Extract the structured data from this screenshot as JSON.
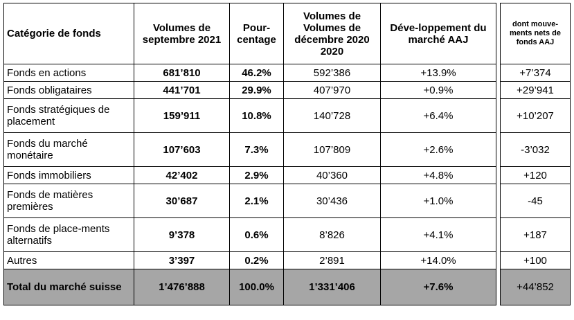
{
  "headers": {
    "category": "Catégorie de fonds",
    "vol_sep": "Volumes de septembre 2021",
    "pct": "Pour-centage",
    "vol_dec_line1": "Volumes de",
    "vol_dec_line2": "Volumes de",
    "vol_dec_line3": "décembre 2020",
    "vol_dec_line4": "2020",
    "dev": "Déve-loppement du marché AAJ",
    "net": "dont mouve-ments nets de fonds AAJ"
  },
  "rows": [
    {
      "category": "Fonds en actions",
      "vol_sep": "681’810",
      "pct": "46.2%",
      "vol_dec": "592’386",
      "dev": "+13.9%",
      "net": "+7’374"
    },
    {
      "category": "Fonds obligataires",
      "vol_sep": "441’701",
      "pct": "29.9%",
      "vol_dec": "407’970",
      "dev": "+0.9%",
      "net": "+29’941"
    },
    {
      "category": "Fonds stratégiques de placement",
      "vol_sep": "159’911",
      "pct": "10.8%",
      "vol_dec": "140’728",
      "dev": "+6.4%",
      "net": "+10’207"
    },
    {
      "category": "Fonds du marché monétaire",
      "vol_sep": "107’603",
      "pct": "7.3%",
      "vol_dec": "107’809",
      "dev": "+2.6%",
      "net": "-3’032"
    },
    {
      "category": "Fonds immobiliers",
      "vol_sep": "42’402",
      "pct": "2.9%",
      "vol_dec": "40’360",
      "dev": "+4.8%",
      "net": "+120"
    },
    {
      "category": "Fonds de matières premières",
      "vol_sep": "30’687",
      "pct": "2.1%",
      "vol_dec": "30’436",
      "dev": "+1.0%",
      "net": "-45"
    },
    {
      "category": "Fonds de place-ments alternatifs",
      "vol_sep": "9’378",
      "pct": "0.6%",
      "vol_dec": "8’826",
      "dev": "+4.1%",
      "net": "+187"
    },
    {
      "category": "Autres",
      "vol_sep": "3’397",
      "pct": "0.2%",
      "vol_dec": "2’891",
      "dev": "+14.0%",
      "net": "+100"
    }
  ],
  "total": {
    "category": "Total du marché suisse",
    "vol_sep": "1’476’888",
    "pct": "100.0%",
    "vol_dec": "1’331’406",
    "dev": "+7.6%",
    "net": "+44’852"
  }
}
